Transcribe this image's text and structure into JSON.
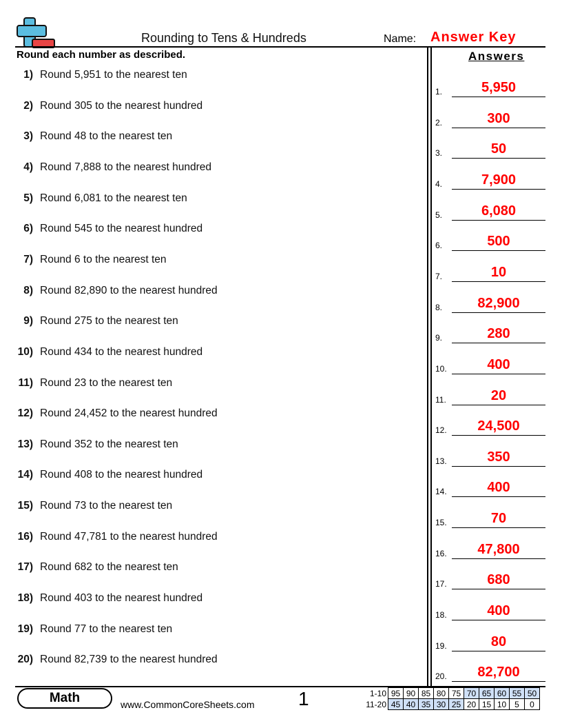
{
  "header": {
    "title": "Rounding to Tens & Hundreds",
    "name_label": "Name:",
    "name_value": "Answer Key"
  },
  "instructions": "Round each number as described.",
  "answers_title": "Answers",
  "colors": {
    "answer": "#ff0000",
    "logo_plus": "#5bbde0",
    "logo_minus": "#e84545",
    "score_highlight": "#cfe0f7"
  },
  "questions": [
    {
      "num": "1)",
      "text": "Round 5,951 to the nearest ten",
      "answer": "5,950"
    },
    {
      "num": "2)",
      "text": "Round 305 to the nearest hundred",
      "answer": "300"
    },
    {
      "num": "3)",
      "text": "Round 48 to the nearest ten",
      "answer": "50"
    },
    {
      "num": "4)",
      "text": "Round 7,888 to the nearest hundred",
      "answer": "7,900"
    },
    {
      "num": "5)",
      "text": "Round 6,081 to the nearest ten",
      "answer": "6,080"
    },
    {
      "num": "6)",
      "text": "Round 545 to the nearest hundred",
      "answer": "500"
    },
    {
      "num": "7)",
      "text": "Round 6 to the nearest ten",
      "answer": "10"
    },
    {
      "num": "8)",
      "text": "Round 82,890 to the nearest hundred",
      "answer": "82,900"
    },
    {
      "num": "9)",
      "text": "Round 275 to the nearest ten",
      "answer": "280"
    },
    {
      "num": "10)",
      "text": "Round 434 to the nearest hundred",
      "answer": "400"
    },
    {
      "num": "11)",
      "text": "Round 23 to the nearest ten",
      "answer": "20"
    },
    {
      "num": "12)",
      "text": "Round 24,452 to the nearest hundred",
      "answer": "24,500"
    },
    {
      "num": "13)",
      "text": "Round 352 to the nearest ten",
      "answer": "350"
    },
    {
      "num": "14)",
      "text": "Round 408 to the nearest hundred",
      "answer": "400"
    },
    {
      "num": "15)",
      "text": "Round 73 to the nearest ten",
      "answer": "70"
    },
    {
      "num": "16)",
      "text": "Round 47,781 to the nearest hundred",
      "answer": "47,800"
    },
    {
      "num": "17)",
      "text": "Round 682 to the nearest ten",
      "answer": "680"
    },
    {
      "num": "18)",
      "text": "Round 403 to the nearest hundred",
      "answer": "400"
    },
    {
      "num": "19)",
      "text": "Round 77 to the nearest ten",
      "answer": "80"
    },
    {
      "num": "20)",
      "text": "Round 82,739 to the nearest hundred",
      "answer": "82,700"
    }
  ],
  "answer_labels": [
    "1.",
    "2.",
    "3.",
    "4.",
    "5.",
    "6.",
    "7.",
    "8.",
    "9.",
    "10.",
    "11.",
    "12.",
    "13.",
    "14.",
    "15.",
    "16.",
    "17.",
    "18.",
    "19.",
    "20."
  ],
  "footer": {
    "subject": "Math",
    "website": "www.CommonCoreSheets.com",
    "page": "1",
    "score_rows": [
      {
        "label": "1-10",
        "cells": [
          "95",
          "90",
          "85",
          "80",
          "75",
          "70",
          "65",
          "60",
          "55",
          "50"
        ],
        "highlight_from": 5,
        "highlight_to": 9
      },
      {
        "label": "11-20",
        "cells": [
          "45",
          "40",
          "35",
          "30",
          "25",
          "20",
          "15",
          "10",
          "5",
          "0"
        ],
        "highlight_from": 0,
        "highlight_to": 4
      }
    ]
  }
}
